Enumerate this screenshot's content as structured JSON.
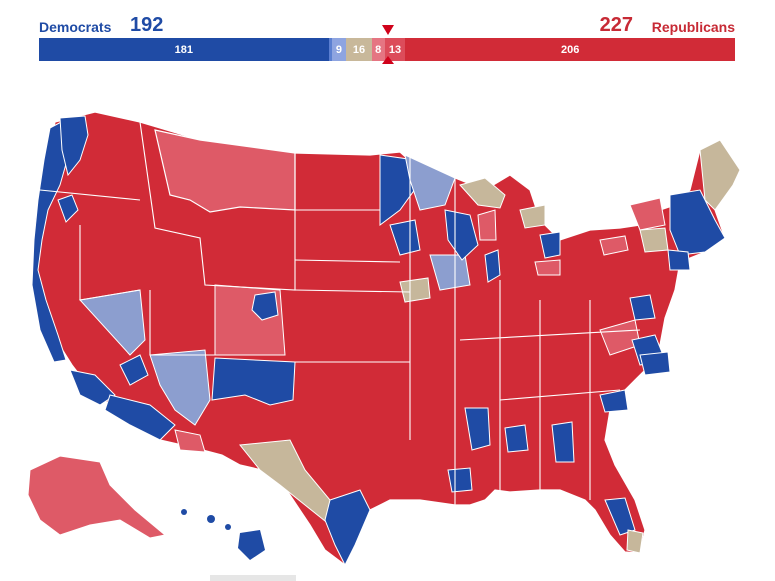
{
  "header": {
    "dem_label": "Democrats",
    "dem_total": "192",
    "rep_total": "227",
    "rep_label": "Republicans"
  },
  "bar": {
    "segments": [
      {
        "key": "safe_dem",
        "label": "181",
        "seats": 181,
        "color": "#1f4ba5"
      },
      {
        "key": "likely_dem",
        "label": "",
        "seats": 2,
        "color": "#5b7fd1"
      },
      {
        "key": "lean_dem",
        "label": "9",
        "seats": 9,
        "color": "#8ea4e0"
      },
      {
        "key": "tossup",
        "label": "16",
        "seats": 16,
        "color": "#c8b89a"
      },
      {
        "key": "lean_rep",
        "label": "8",
        "seats": 8,
        "color": "#e57582"
      },
      {
        "key": "likely_rep",
        "label": "13",
        "seats": 13,
        "color": "#dc4c5a"
      },
      {
        "key": "safe_rep",
        "label": "206",
        "seats": 206,
        "color": "#d12b37"
      }
    ],
    "majority_marker": 218,
    "total_seats": 435
  },
  "colors": {
    "safe_dem": "#1f4ba5",
    "lean_dem": "#8c9ecf",
    "tossup": "#c6b79b",
    "lean_rep": "#de5a67",
    "safe_rep": "#d12b37"
  }
}
